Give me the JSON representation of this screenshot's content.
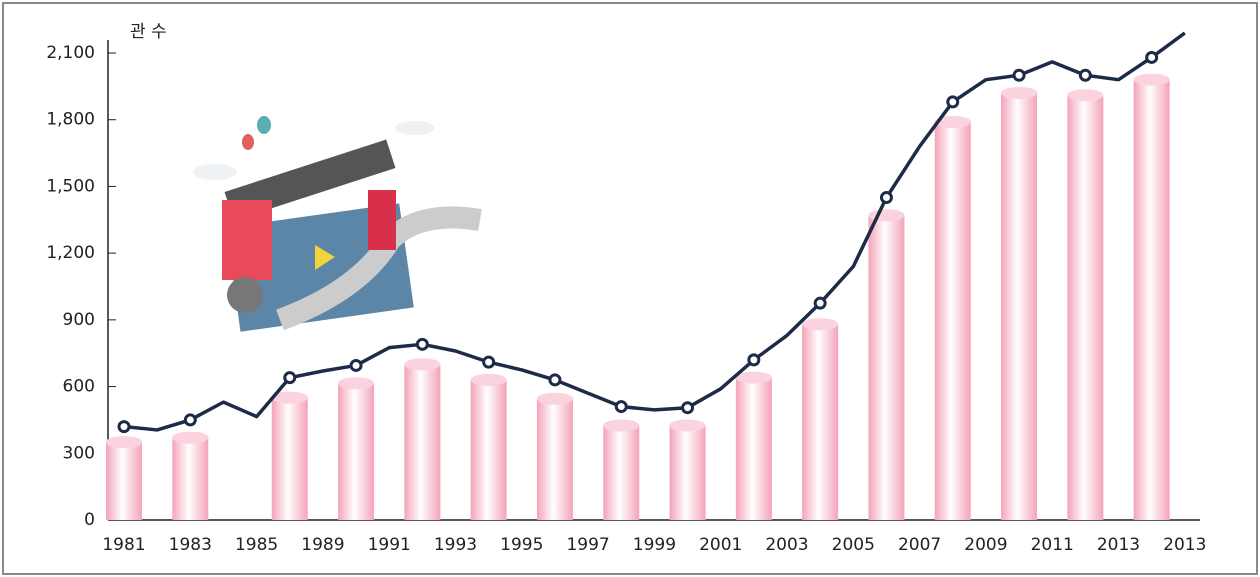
{
  "chart_data": {
    "type": "bar-line",
    "y_label": "관 수",
    "categories": [
      "1981",
      null,
      "1983",
      null,
      "1985",
      null,
      "1989",
      null,
      "1991",
      null,
      "1993",
      null,
      "1995",
      null,
      "1997",
      null,
      "1999",
      null,
      "2001",
      null,
      "2003",
      null,
      "2005",
      null,
      "2007",
      null,
      "2009",
      null,
      "2011",
      null,
      "2013",
      null,
      "2013"
    ],
    "series": [
      {
        "type": "bar",
        "color": "#f4a3b8",
        "values": [
          350,
          null,
          370,
          null,
          null,
          550,
          null,
          615,
          null,
          700,
          null,
          630,
          null,
          545,
          null,
          425,
          null,
          425,
          null,
          640,
          null,
          880,
          null,
          1370,
          null,
          1790,
          null,
          1920,
          null,
          1910,
          null,
          1980,
          null
        ]
      },
      {
        "type": "line",
        "color": "#1e2b48",
        "values": [
          420,
          405,
          450,
          530,
          465,
          640,
          670,
          695,
          775,
          790,
          760,
          710,
          675,
          630,
          570,
          510,
          495,
          505,
          590,
          720,
          830,
          975,
          1140,
          1450,
          1680,
          1880,
          1980,
          2000,
          2060,
          2000,
          1980,
          2080,
          2190
        ]
      }
    ],
    "ylim": [
      0,
      2100
    ],
    "yticks": [
      0,
      300,
      600,
      900,
      {
        "value": 1200,
        "label": "1,200"
      },
      {
        "value": 1500,
        "label": "1,500"
      },
      {
        "value": 1800,
        "label": "1,800"
      },
      {
        "value": 2100,
        "label": "2,100"
      }
    ]
  }
}
